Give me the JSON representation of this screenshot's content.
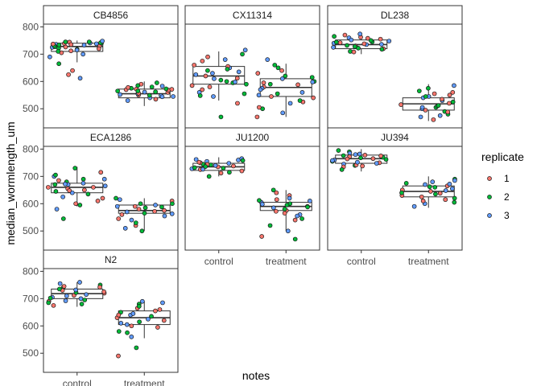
{
  "chart_data": {
    "type": "box-jitter",
    "facet_by": "strain",
    "xlabel": "notes",
    "ylabel": "median_wormlength_um",
    "categories": [
      "control",
      "treatment"
    ],
    "y_ticks": [
      500,
      600,
      700,
      800
    ],
    "ylim": [
      430,
      810
    ],
    "grid": false,
    "legend": {
      "title": "replicate",
      "placement": "right",
      "entries": [
        {
          "label": "1",
          "color": "#f8766d"
        },
        {
          "label": "2",
          "color": "#00ba38"
        },
        {
          "label": "3",
          "color": "#619cff"
        }
      ]
    },
    "panels": [
      {
        "title": "CB4856",
        "control": {
          "q1": 710,
          "median": 728,
          "q3": 740,
          "lower": 670,
          "upper": 750,
          "points": [
            730,
            740,
            725,
            712,
            742,
            736,
            744,
            718,
            733,
            705,
            727,
            748,
            735,
            722,
            715,
            739,
            731,
            741,
            726,
            745,
            690,
            720,
            734,
            738,
            640,
            665,
            612,
            625,
            745,
            700,
            737,
            710
          ]
        },
        "treatment": {
          "q1": 540,
          "median": 555,
          "q3": 572,
          "lower": 510,
          "upper": 600,
          "points": [
            550,
            565,
            545,
            572,
            580,
            540,
            560,
            575,
            555,
            590,
            585,
            548,
            557,
            565,
            530,
            570,
            562,
            552,
            578,
            595,
            544,
            568,
            573,
            583,
            535,
            549,
            561,
            571
          ]
        }
      },
      {
        "title": "CX11314",
        "control": {
          "q1": 590,
          "median": 620,
          "q3": 655,
          "lower": 530,
          "upper": 710,
          "points": [
            620,
            640,
            560,
            580,
            600,
            650,
            675,
            700,
            715,
            690,
            605,
            630,
            585,
            555,
            545,
            520,
            470,
            610,
            660,
            595,
            635,
            570,
            590,
            625,
            655,
            645,
            680,
            612,
            548,
            598
          ]
        },
        "treatment": {
          "q1": 545,
          "median": 578,
          "q3": 610,
          "lower": 470,
          "upper": 665,
          "points": [
            580,
            600,
            550,
            540,
            620,
            560,
            525,
            500,
            485,
            470,
            590,
            610,
            630,
            660,
            680,
            545,
            530,
            575,
            595,
            615,
            520,
            505,
            555,
            570,
            640,
            650,
            598,
            588
          ]
        }
      },
      {
        "title": "DL238",
        "control": {
          "q1": 720,
          "median": 735,
          "q3": 752,
          "lower": 700,
          "upper": 778,
          "points": [
            730,
            745,
            760,
            720,
            750,
            735,
            770,
            710,
            740,
            755,
            765,
            725,
            742,
            732,
            748,
            738,
            728,
            752,
            762,
            718,
            774,
            708,
            744,
            736,
            758,
            722
          ]
        },
        "treatment": {
          "q1": 495,
          "median": 518,
          "q3": 540,
          "lower": 455,
          "upper": 590,
          "points": [
            520,
            505,
            540,
            560,
            480,
            470,
            495,
            510,
            530,
            550,
            575,
            585,
            460,
            490,
            500,
            515,
            525,
            545,
            555,
            565,
            475,
            535,
            545,
            505,
            488,
            512
          ]
        }
      },
      {
        "title": "ECA1286",
        "control": {
          "q1": 640,
          "median": 660,
          "q3": 675,
          "lower": 590,
          "upper": 735,
          "points": [
            660,
            680,
            640,
            620,
            690,
            700,
            650,
            670,
            580,
            600,
            545,
            690,
            715,
            730,
            665,
            655,
            645,
            675,
            685,
            635,
            625,
            610,
            595,
            670,
            660,
            705,
            672,
            648
          ]
        },
        "treatment": {
          "q1": 565,
          "median": 575,
          "q3": 595,
          "lower": 500,
          "upper": 620,
          "points": [
            575,
            585,
            590,
            560,
            600,
            570,
            520,
            500,
            540,
            610,
            620,
            595,
            580,
            565,
            555,
            545,
            530,
            510,
            590,
            600,
            615,
            572,
            588,
            563
          ]
        }
      },
      {
        "title": "JU1200",
        "control": {
          "q1": 722,
          "median": 735,
          "q3": 748,
          "lower": 700,
          "upper": 770,
          "points": [
            735,
            745,
            755,
            725,
            715,
            740,
            750,
            730,
            760,
            720,
            700,
            765,
            738,
            742,
            728,
            752,
            732,
            748,
            712,
            758,
            726,
            744,
            736,
            762
          ]
        },
        "treatment": {
          "q1": 575,
          "median": 590,
          "q3": 605,
          "lower": 500,
          "upper": 650,
          "points": [
            590,
            600,
            560,
            540,
            520,
            500,
            480,
            470,
            610,
            630,
            650,
            585,
            575,
            595,
            605,
            615,
            545,
            555,
            565,
            580,
            620,
            640,
            612,
            598,
            572,
            588
          ]
        }
      },
      {
        "title": "JU394",
        "control": {
          "q1": 748,
          "median": 765,
          "q3": 778,
          "lower": 718,
          "upper": 800,
          "points": [
            765,
            770,
            780,
            750,
            740,
            760,
            775,
            790,
            745,
            735,
            755,
            785,
            772,
            762,
            748,
            778,
            768,
            758,
            742,
            795,
            752,
            764,
            776,
            782,
            738,
            725
          ]
        },
        "treatment": {
          "q1": 625,
          "median": 645,
          "q3": 665,
          "lower": 585,
          "upper": 700,
          "points": [
            645,
            660,
            670,
            630,
            620,
            600,
            610,
            690,
            680,
            650,
            640,
            590,
            625,
            635,
            655,
            665,
            675,
            685,
            615,
            605,
            648,
            638,
            662,
            672
          ]
        }
      },
      {
        "title": "N2",
        "control": {
          "q1": 700,
          "median": 718,
          "q3": 735,
          "lower": 670,
          "upper": 760,
          "points": [
            720,
            740,
            700,
            690,
            680,
            710,
            730,
            750,
            760,
            675,
            695,
            715,
            725,
            735,
            705,
            745,
            685,
            755,
            712,
            722,
            732,
            742,
            702,
            692
          ]
        },
        "treatment": {
          "q1": 605,
          "median": 630,
          "q3": 655,
          "lower": 555,
          "upper": 690,
          "points": [
            630,
            650,
            610,
            600,
            580,
            560,
            490,
            520,
            640,
            660,
            680,
            690,
            620,
            635,
            645,
            655,
            615,
            605,
            595,
            575,
            625,
            665,
            672,
            685,
            640
          ]
        }
      }
    ]
  }
}
